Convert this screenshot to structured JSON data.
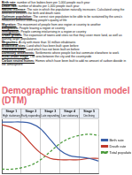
{
  "definitions": [
    {
      "term": "Birth rate:",
      "text": "number of live babies born per 1,000 people each year"
    },
    {
      "term": "Death rate:",
      "text": "number of deaths per 1,000 people each year"
    },
    {
      "term": "Natural increase:",
      "text": "The rate in which the population naturally increases. Calculated using the difference between the birth and death rates"
    },
    {
      "term": "Optimum population:",
      "text": "The correct size population to be able to be sustained by the area's resources without lowering people's quality of life"
    },
    {
      "term": "Migration:",
      "text": "The movement of people from one region or country to another"
    },
    {
      "term": "Emigration:",
      "text": "People leaving a region or country"
    },
    {
      "term": "Immigration:",
      "text": "People coming into/arriving in a region or country"
    },
    {
      "term": "Urban growth:",
      "text": "The expansion of towns and cities so that they cover more land, as well as gaining larger populations"
    },
    {
      "term": "Megacities:",
      "text": "A city with more than 10 million inhabitants"
    },
    {
      "term": "Brownfield sites:",
      "text": "Land which has been built upon before"
    },
    {
      "term": "Greenfield sites:",
      "text": "Land which has not been built on before"
    },
    {
      "term": "Dormitory settlements:",
      "text": "Settlements where people live but commute elsewhere to work"
    },
    {
      "term": "Rural-urban fringe:",
      "text": "The area between the city and the countryside"
    },
    {
      "term": "Carbon neutral homes:",
      "text": "Homes which have been built to add no amount of carbon dioxide in the atmosphere"
    }
  ],
  "title": "Demographic transition model (DTM)",
  "stages": [
    {
      "name": "Stage 1",
      "label": "High stationary"
    },
    {
      "name": "Stage 2",
      "label": "Early expanding"
    },
    {
      "name": "Stage 3",
      "label": "Late expanding"
    },
    {
      "name": "Stage 4",
      "label": "Low stationary"
    },
    {
      "name": "Stage 5",
      "label": "Declining"
    }
  ],
  "chart_data": {
    "type": "line",
    "x": [
      0,
      1,
      2,
      3,
      4,
      5,
      6,
      7,
      8,
      9,
      10
    ],
    "xlim": [
      0,
      10
    ],
    "xticks": [
      0,
      2,
      4,
      6,
      8,
      10
    ],
    "ylim": [
      0,
      40
    ],
    "grid": "x",
    "tick_labels": false,
    "legend": "right",
    "series": [
      {
        "name": "Birth rate",
        "color": "#3a5fa8",
        "line_style": "solid",
        "values": [
          38,
          38,
          38,
          37,
          33,
          25,
          17,
          13,
          12,
          11,
          9
        ]
      },
      {
        "name": "Death rate",
        "color": "#c0392b",
        "line_style": "solid",
        "values": [
          36,
          34,
          30,
          22,
          15,
          11,
          10,
          10,
          10,
          11,
          11
        ]
      },
      {
        "name": "Total population",
        "color": "#4a9a3a",
        "line_style": "dashed",
        "values": [
          3,
          3,
          4,
          6,
          10,
          16,
          22,
          26,
          28,
          29,
          28
        ]
      }
    ]
  }
}
